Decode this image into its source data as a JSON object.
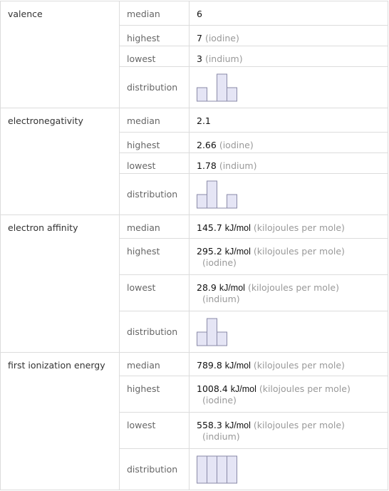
{
  "table": {
    "rows": [
      {
        "property": "valence",
        "stats": [
          {
            "label": "median",
            "value": 6
          },
          {
            "label": "highest",
            "value": 7,
            "note": "(iodine)"
          },
          {
            "label": "lowest",
            "value": 3,
            "note": "(indium)"
          }
        ],
        "distribution_label": "distribution",
        "distribution": [
          1,
          0,
          2,
          1
        ]
      },
      {
        "property": "electronegativity",
        "stats": [
          {
            "label": "median",
            "value": 2.1
          },
          {
            "label": "highest",
            "value": 2.66,
            "note": "(iodine)"
          },
          {
            "label": "lowest",
            "value": 1.78,
            "note": "(indium)"
          }
        ],
        "distribution_label": "distribution",
        "distribution": [
          1,
          2,
          0,
          1
        ]
      },
      {
        "property": "electron affinity",
        "stats": [
          {
            "label": "median",
            "value": 145.7,
            "unit": "kJ/mol",
            "unit_name": "(kilojoules per mole)"
          },
          {
            "label": "highest",
            "value": 295.2,
            "unit": "kJ/mol",
            "unit_name": "(kilojoules per mole)",
            "note": "(iodine)"
          },
          {
            "label": "lowest",
            "value": 28.9,
            "unit": "kJ/mol",
            "unit_name": "(kilojoules per mole)",
            "note": "(indium)"
          }
        ],
        "distribution_label": "distribution",
        "distribution": [
          1,
          2,
          1
        ]
      },
      {
        "property": "first ionization energy",
        "stats": [
          {
            "label": "median",
            "value": 789.8,
            "unit": "kJ/mol",
            "unit_name": "(kilojoules per mole)"
          },
          {
            "label": "highest",
            "value": 1008.4,
            "unit": "kJ/mol",
            "unit_name": "(kilojoules per mole)",
            "note": "(iodine)"
          },
          {
            "label": "lowest",
            "value": 558.3,
            "unit": "kJ/mol",
            "unit_name": "(kilojoules per mole)",
            "note": "(indium)"
          }
        ],
        "distribution_label": "distribution",
        "distribution": [
          1,
          1,
          1,
          1
        ]
      }
    ]
  }
}
